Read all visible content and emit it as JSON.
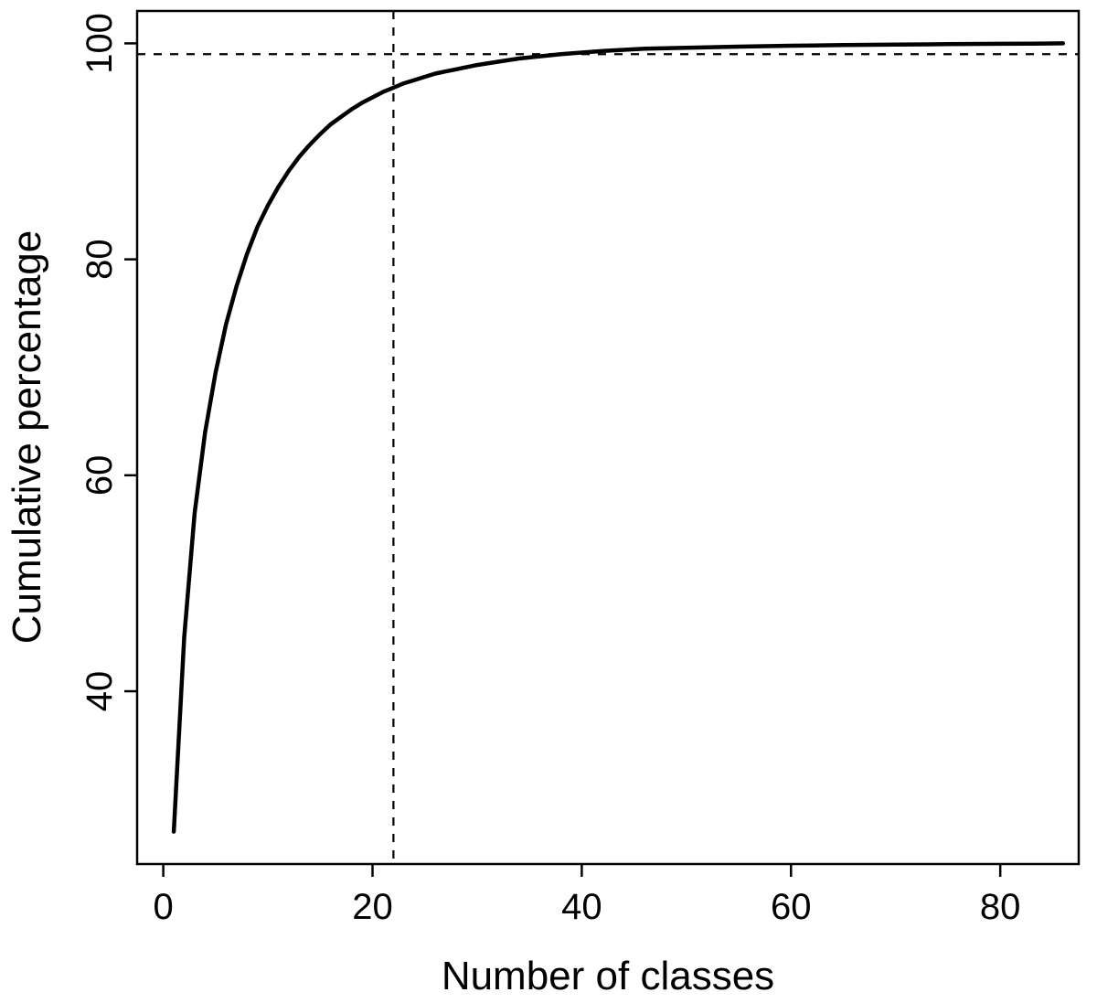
{
  "chart_data": {
    "type": "line",
    "title": "",
    "xlabel": "Number of classes",
    "ylabel": "Cumulative percentage",
    "x": [
      1,
      2,
      3,
      4,
      5,
      6,
      7,
      8,
      9,
      10,
      11,
      12,
      13,
      14,
      15,
      16,
      17,
      18,
      19,
      20,
      21,
      22,
      23,
      24,
      25,
      26,
      27,
      28,
      29,
      30,
      32,
      34,
      36,
      38,
      40,
      42,
      44,
      46,
      48,
      50,
      55,
      60,
      65,
      70,
      75,
      80,
      83,
      86
    ],
    "y": [
      27,
      45,
      56.5,
      64,
      69.5,
      74,
      77.5,
      80.5,
      83,
      85,
      86.7,
      88.2,
      89.5,
      90.6,
      91.6,
      92.5,
      93.2,
      93.9,
      94.5,
      95,
      95.5,
      95.9,
      96.3,
      96.6,
      96.9,
      97.2,
      97.4,
      97.6,
      97.8,
      98,
      98.3,
      98.6,
      98.8,
      99,
      99.15,
      99.3,
      99.4,
      99.5,
      99.55,
      99.6,
      99.7,
      99.78,
      99.84,
      99.89,
      99.93,
      99.96,
      99.98,
      100
    ],
    "xlim": [
      -2.5,
      87.5
    ],
    "ylim": [
      24,
      103
    ],
    "xticks": [
      0,
      20,
      40,
      60,
      80
    ],
    "yticks": [
      40,
      60,
      80,
      100
    ],
    "grid": false,
    "legend": "none",
    "line_color": "#000000",
    "frame": "box",
    "reference_lines": [
      {
        "orientation": "vertical",
        "value": 22,
        "style": "dashed",
        "color": "#000000"
      },
      {
        "orientation": "horizontal",
        "value": 99,
        "style": "dashed",
        "color": "#000000"
      }
    ]
  }
}
